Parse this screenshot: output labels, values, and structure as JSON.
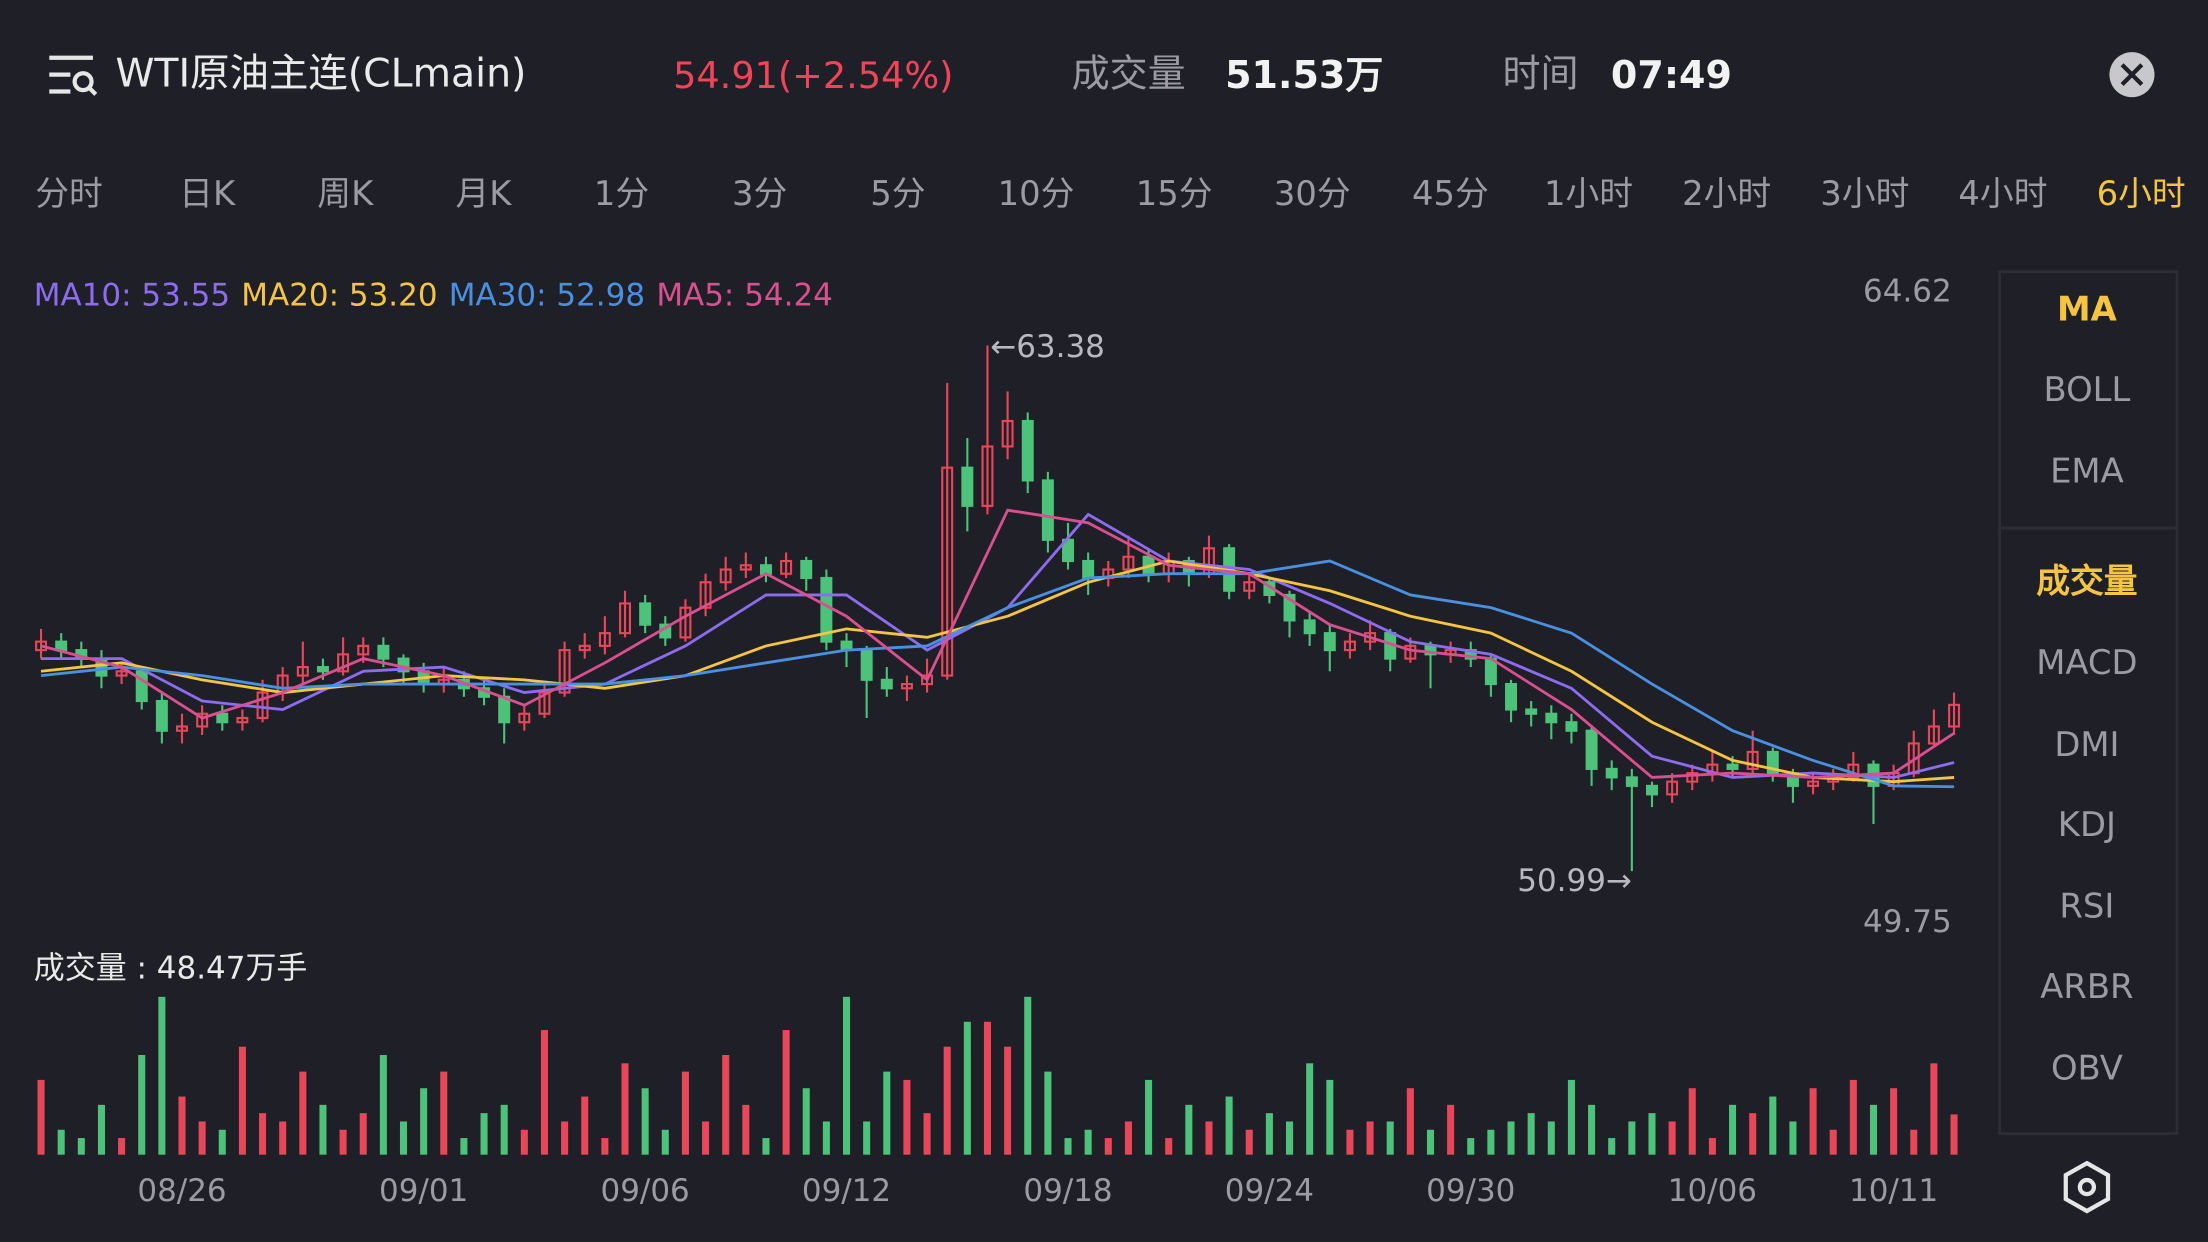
{
  "header": {
    "title": "WTI原油主连(CLmain)",
    "price": "54.91(+2.54%)",
    "volume_label": "成交量",
    "volume_value": "51.53万",
    "time_label": "时间",
    "time_value": "07:49"
  },
  "tabs": {
    "items": [
      "分时",
      "日K",
      "周K",
      "月K",
      "1分",
      "3分",
      "5分",
      "10分",
      "15分",
      "30分",
      "45分",
      "1小时",
      "2小时",
      "3小时",
      "4小时",
      "6小时"
    ],
    "active": "6小时"
  },
  "indicators": {
    "main": [
      "MA",
      "BOLL",
      "EMA"
    ],
    "sub": [
      "成交量",
      "MACD",
      "DMI",
      "KDJ",
      "RSI",
      "ARBR",
      "OBV"
    ],
    "active": [
      "MA",
      "成交量"
    ]
  },
  "chart_data": {
    "type": "candlestick",
    "ylim": [
      49.75,
      64.62
    ],
    "yticks": [
      64.62,
      49.75
    ],
    "xticks": [
      {
        "value": 7,
        "label": "08/26"
      },
      {
        "value": 19,
        "label": "09/01"
      },
      {
        "value": 30,
        "label": "09/06"
      },
      {
        "value": 40,
        "label": "09/12"
      },
      {
        "value": 51,
        "label": "09/18"
      },
      {
        "value": 61,
        "label": "09/24"
      },
      {
        "value": 71,
        "label": "09/30"
      },
      {
        "value": 83,
        "label": "10/06"
      },
      {
        "value": 92,
        "label": "10/11"
      }
    ],
    "up_color": "#e8475a",
    "down_color": "#4cc27a",
    "candles": [
      [
        56.2,
        56.7,
        56.0,
        56.4
      ],
      [
        56.4,
        56.6,
        56.0,
        56.2
      ],
      [
        56.2,
        56.4,
        55.8,
        56.0
      ],
      [
        56.0,
        56.2,
        55.3,
        55.6
      ],
      [
        55.6,
        55.9,
        55.4,
        55.7
      ],
      [
        55.7,
        55.8,
        54.8,
        55.0
      ],
      [
        55.0,
        55.2,
        54.0,
        54.3
      ],
      [
        54.3,
        54.7,
        54.0,
        54.4
      ],
      [
        54.4,
        54.9,
        54.2,
        54.7
      ],
      [
        54.7,
        54.9,
        54.3,
        54.5
      ],
      [
        54.5,
        54.8,
        54.3,
        54.6
      ],
      [
        54.6,
        55.5,
        54.5,
        55.2
      ],
      [
        55.2,
        55.8,
        55.0,
        55.6
      ],
      [
        55.6,
        56.4,
        55.4,
        55.8
      ],
      [
        55.8,
        56.0,
        55.5,
        55.7
      ],
      [
        55.7,
        56.5,
        55.6,
        56.1
      ],
      [
        56.1,
        56.5,
        55.9,
        56.3
      ],
      [
        56.3,
        56.5,
        55.8,
        56.0
      ],
      [
        56.0,
        56.1,
        55.4,
        55.7
      ],
      [
        55.7,
        55.9,
        55.2,
        55.4
      ],
      [
        55.4,
        55.8,
        55.2,
        55.5
      ],
      [
        55.5,
        55.7,
        55.1,
        55.3
      ],
      [
        55.3,
        55.5,
        54.9,
        55.1
      ],
      [
        55.1,
        55.3,
        54.0,
        54.5
      ],
      [
        54.5,
        54.9,
        54.3,
        54.7
      ],
      [
        54.7,
        55.4,
        54.6,
        55.2
      ],
      [
        55.2,
        56.4,
        55.1,
        56.2
      ],
      [
        56.2,
        56.6,
        56.0,
        56.3
      ],
      [
        56.3,
        57.0,
        56.1,
        56.6
      ],
      [
        56.6,
        57.6,
        56.5,
        57.3
      ],
      [
        57.3,
        57.5,
        56.6,
        56.8
      ],
      [
        56.8,
        57.0,
        56.3,
        56.5
      ],
      [
        56.5,
        57.4,
        56.4,
        57.2
      ],
      [
        57.2,
        58.0,
        57.0,
        57.8
      ],
      [
        57.8,
        58.4,
        57.6,
        58.1
      ],
      [
        58.1,
        58.5,
        57.9,
        58.2
      ],
      [
        58.2,
        58.4,
        57.8,
        58.0
      ],
      [
        58.0,
        58.5,
        57.9,
        58.3
      ],
      [
        58.3,
        58.4,
        57.6,
        57.9
      ],
      [
        57.9,
        58.1,
        56.2,
        56.4
      ],
      [
        56.4,
        56.6,
        55.8,
        56.2
      ],
      [
        56.2,
        56.3,
        54.6,
        55.5
      ],
      [
        55.5,
        55.8,
        55.1,
        55.3
      ],
      [
        55.3,
        55.6,
        55.0,
        55.4
      ],
      [
        55.4,
        56.0,
        55.2,
        55.6
      ],
      [
        55.6,
        62.5,
        55.5,
        60.5
      ],
      [
        60.5,
        61.2,
        59.0,
        59.6
      ],
      [
        59.6,
        63.38,
        59.4,
        61.0
      ],
      [
        61.0,
        62.3,
        60.7,
        61.6
      ],
      [
        61.6,
        61.8,
        59.9,
        60.2
      ],
      [
        60.2,
        60.4,
        58.5,
        58.8
      ],
      [
        58.8,
        59.2,
        58.1,
        58.3
      ],
      [
        58.3,
        58.5,
        57.5,
        57.9
      ],
      [
        57.9,
        58.3,
        57.7,
        58.1
      ],
      [
        58.1,
        58.9,
        57.9,
        58.4
      ],
      [
        58.4,
        58.6,
        57.8,
        58.0
      ],
      [
        58.0,
        58.5,
        57.8,
        58.3
      ],
      [
        58.3,
        58.4,
        57.7,
        58.0
      ],
      [
        58.0,
        58.9,
        57.9,
        58.6
      ],
      [
        58.6,
        58.7,
        57.4,
        57.6
      ],
      [
        57.6,
        58.0,
        57.4,
        57.8
      ],
      [
        57.8,
        57.9,
        57.3,
        57.5
      ],
      [
        57.5,
        57.6,
        56.5,
        56.9
      ],
      [
        56.9,
        57.1,
        56.3,
        56.6
      ],
      [
        56.6,
        56.8,
        55.7,
        56.2
      ],
      [
        56.2,
        56.6,
        56.0,
        56.4
      ],
      [
        56.4,
        56.9,
        56.2,
        56.6
      ],
      [
        56.6,
        56.7,
        55.7,
        56.0
      ],
      [
        56.0,
        56.5,
        55.9,
        56.3
      ],
      [
        56.3,
        56.4,
        55.3,
        56.1
      ],
      [
        56.1,
        56.4,
        55.9,
        56.2
      ],
      [
        56.2,
        56.4,
        55.8,
        56.0
      ],
      [
        56.0,
        56.1,
        55.1,
        55.4
      ],
      [
        55.4,
        55.5,
        54.5,
        54.8
      ],
      [
        54.8,
        55.0,
        54.4,
        54.7
      ],
      [
        54.7,
        54.9,
        54.1,
        54.5
      ],
      [
        54.5,
        54.7,
        54.0,
        54.3
      ],
      [
        54.3,
        54.4,
        53.0,
        53.4
      ],
      [
        53.4,
        53.6,
        52.9,
        53.2
      ],
      [
        53.2,
        53.4,
        50.99,
        53.0
      ],
      [
        53.0,
        53.1,
        52.5,
        52.8
      ],
      [
        52.8,
        53.3,
        52.6,
        53.1
      ],
      [
        53.1,
        53.5,
        52.9,
        53.3
      ],
      [
        53.3,
        53.8,
        53.1,
        53.5
      ],
      [
        53.5,
        53.7,
        53.2,
        53.4
      ],
      [
        53.4,
        54.3,
        53.3,
        53.8
      ],
      [
        53.8,
        53.9,
        53.1,
        53.3
      ],
      [
        53.3,
        53.4,
        52.6,
        53.0
      ],
      [
        53.0,
        53.3,
        52.8,
        53.1
      ],
      [
        53.1,
        53.4,
        52.9,
        53.2
      ],
      [
        53.2,
        53.8,
        53.1,
        53.5
      ],
      [
        53.5,
        53.6,
        52.1,
        53.0
      ],
      [
        53.0,
        53.5,
        52.9,
        53.3
      ],
      [
        53.3,
        54.3,
        53.2,
        54.0
      ],
      [
        54.0,
        54.8,
        53.9,
        54.4
      ],
      [
        54.4,
        55.2,
        54.2,
        54.91
      ]
    ],
    "volume_label": "成交量 : 48.47万手",
    "volume_ylim": [
      0,
      200
    ],
    "volumes": [
      90,
      30,
      20,
      60,
      20,
      120,
      190,
      70,
      40,
      30,
      130,
      50,
      40,
      100,
      60,
      30,
      50,
      120,
      40,
      80,
      100,
      20,
      50,
      60,
      30,
      150,
      40,
      70,
      20,
      110,
      80,
      30,
      100,
      40,
      120,
      60,
      20,
      150,
      80,
      40,
      190,
      40,
      100,
      90,
      50,
      130,
      160,
      160,
      130,
      190,
      100,
      20,
      30,
      20,
      40,
      90,
      20,
      60,
      40,
      70,
      30,
      50,
      40,
      110,
      90,
      30,
      40,
      40,
      80,
      30,
      60,
      20,
      30,
      40,
      50,
      40,
      90,
      60,
      20,
      40,
      50,
      40,
      80,
      20,
      60,
      50,
      70,
      40,
      80,
      30,
      90,
      60,
      80,
      30,
      110,
      48.47
    ],
    "ma_x": [
      0,
      4,
      8,
      12,
      16,
      20,
      24,
      28,
      32,
      36,
      40,
      44,
      48,
      52,
      56,
      60,
      64,
      68,
      72,
      76,
      80,
      84,
      88,
      92,
      95
    ],
    "series": [
      {
        "name": "MA10",
        "legend": "MA10: 53.55",
        "color": "#8d6cf0",
        "values": [
          56.0,
          56.0,
          55.0,
          54.8,
          55.7,
          55.8,
          55.2,
          55.4,
          56.3,
          57.5,
          57.5,
          56.2,
          57.2,
          59.4,
          58.3,
          58.1,
          57.3,
          56.4,
          56.1,
          55.3,
          53.7,
          53.2,
          53.3,
          53.2,
          53.55
        ]
      },
      {
        "name": "MA20",
        "legend": "MA20: 53.20",
        "color": "#f5c542",
        "values": [
          55.7,
          55.9,
          55.5,
          55.2,
          55.4,
          55.6,
          55.5,
          55.3,
          55.6,
          56.3,
          56.7,
          56.5,
          57.0,
          57.8,
          58.3,
          58.0,
          57.6,
          57.0,
          56.6,
          55.7,
          54.5,
          53.6,
          53.2,
          53.1,
          53.2
        ]
      },
      {
        "name": "MA30",
        "legend": "MA30: 52.98",
        "color": "#4a90e2",
        "values": [
          55.6,
          55.8,
          55.6,
          55.3,
          55.4,
          55.4,
          55.4,
          55.4,
          55.6,
          55.9,
          56.2,
          56.3,
          57.2,
          57.9,
          58.0,
          58.0,
          58.3,
          57.5,
          57.2,
          56.6,
          55.4,
          54.3,
          53.6,
          53.0,
          52.98
        ]
      },
      {
        "name": "MA5",
        "legend": "MA5: 54.24",
        "color": "#d94f8f",
        "values": [
          56.3,
          55.8,
          54.6,
          55.2,
          56.0,
          55.6,
          54.9,
          55.9,
          57.0,
          58.0,
          57.0,
          55.5,
          59.5,
          59.2,
          58.2,
          58.0,
          56.8,
          56.2,
          56.0,
          54.8,
          53.2,
          53.3,
          53.2,
          53.3,
          54.24
        ]
      }
    ],
    "annotations": {
      "high": {
        "text": "←63.38",
        "index": 47
      },
      "low": {
        "text": "50.99→",
        "index": 79
      }
    }
  }
}
